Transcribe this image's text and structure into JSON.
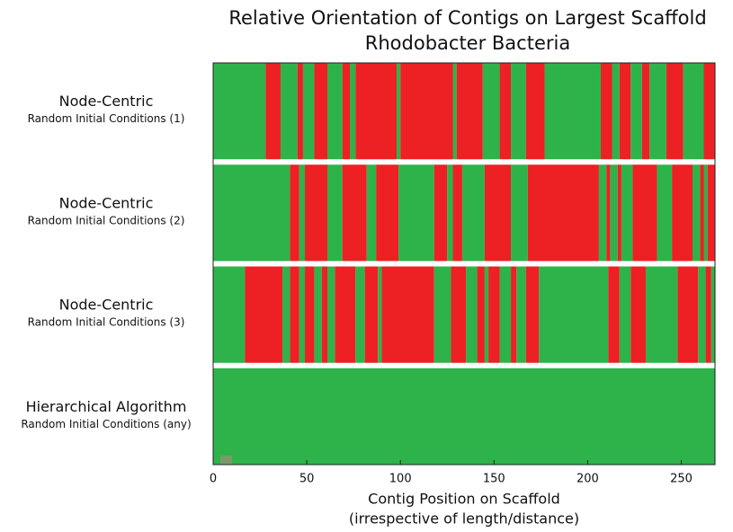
{
  "chart_data": {
    "type": "orientation-strips",
    "title": [
      "Relative Orientation of Contigs on Largest Scaffold",
      "Rhodobacter Bacteria"
    ],
    "xlabel": [
      "Contig Position on Scaffold",
      "(irrespective of length/distance)"
    ],
    "xlim": [
      0,
      268
    ],
    "xticks": [
      0,
      50,
      100,
      150,
      200,
      250
    ],
    "colors": [
      "#2db34a",
      "#ed2024"
    ],
    "rows": [
      {
        "label": "Node-Centric",
        "sublabel": "Random Initial Conditions (1)",
        "values": [
          28,
          36,
          45,
          48,
          54,
          61,
          69,
          73,
          76,
          98,
          100,
          128,
          130,
          144,
          153,
          159,
          167,
          177,
          207,
          213,
          217,
          223,
          229,
          233,
          242,
          251,
          262
        ]
      },
      {
        "label": "Node-Centric",
        "sublabel": "Random Initial Conditions (2)",
        "values": [
          41,
          46,
          49,
          61,
          69,
          82,
          87,
          99,
          118,
          125,
          128,
          133,
          145,
          159,
          168,
          206,
          210,
          212,
          216,
          218,
          224,
          237,
          245,
          256,
          260,
          262,
          264
        ]
      },
      {
        "label": "Node-Centric",
        "sublabel": "Random Initial Conditions (3)",
        "values": [
          17,
          37,
          41,
          46,
          49,
          54,
          58,
          61,
          65,
          76,
          81,
          88,
          90,
          118,
          127,
          135,
          141,
          145,
          147,
          153,
          159,
          162,
          167,
          174,
          211,
          217,
          223,
          231,
          248,
          259,
          263,
          266
        ]
      },
      {
        "label": "Hierarchical Algorithm",
        "sublabel": "Random Initial Conditions (any)",
        "values": []
      }
    ]
  }
}
